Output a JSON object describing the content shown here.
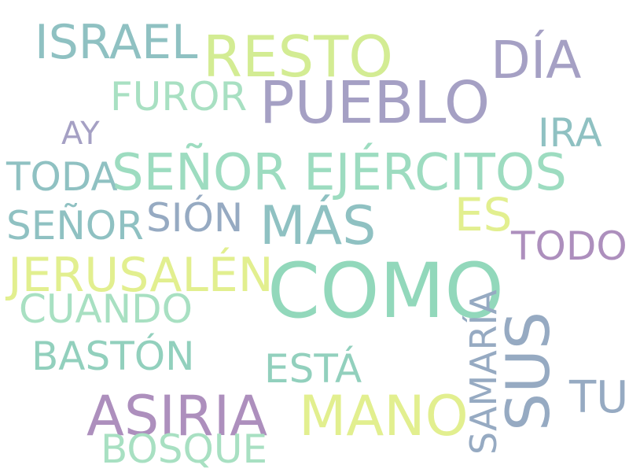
{
  "palette": {
    "teal": "#8fc1c2",
    "lime": "#d3ec93",
    "purple": "#a5a0c4",
    "mint": "#9ddcc0",
    "mauve": "#ad8fbd",
    "yellow": "#e2ef8f",
    "steel": "#96aac2"
  },
  "words": [
    {
      "id": "israel",
      "text": "ISRAEL",
      "color": "#8fc1c2"
    },
    {
      "id": "resto",
      "text": "RESTO",
      "color": "#d3ec93"
    },
    {
      "id": "dia",
      "text": "DÍA",
      "color": "#a5a0c4"
    },
    {
      "id": "furor",
      "text": "FUROR",
      "color": "#a8e0c2"
    },
    {
      "id": "pueblo",
      "text": "PUEBLO",
      "color": "#a5a0c4"
    },
    {
      "id": "ay",
      "text": "AY",
      "color": "#a5a0c4"
    },
    {
      "id": "ira",
      "text": "IRA",
      "color": "#8fc1c2"
    },
    {
      "id": "toda",
      "text": "TODA",
      "color": "#8fc1c2"
    },
    {
      "id": "senor-ejercitos",
      "text": "SEÑOR EJÉRCITOS",
      "color": "#9ddcc0"
    },
    {
      "id": "senor",
      "text": "SEÑOR",
      "color": "#8fc1c2"
    },
    {
      "id": "sion",
      "text": "SIÓN",
      "color": "#96aac2"
    },
    {
      "id": "mas",
      "text": "MÁS",
      "color": "#8fc1c2"
    },
    {
      "id": "es",
      "text": "ES",
      "color": "#e2ef8f"
    },
    {
      "id": "todo",
      "text": "TODO",
      "color": "#ad8fbd"
    },
    {
      "id": "jerusalen",
      "text": "JERUSALÉN",
      "color": "#e2ef8f"
    },
    {
      "id": "como",
      "text": "COMO",
      "color": "#92d8bb"
    },
    {
      "id": "cuando",
      "text": "CUANDO",
      "color": "#a8e0c2"
    },
    {
      "id": "samaria",
      "text": "SAMARÍA",
      "color": "#96aac2"
    },
    {
      "id": "baston",
      "text": "BASTÓN",
      "color": "#92d0bd"
    },
    {
      "id": "esta",
      "text": "ESTÁ",
      "color": "#92d0bd"
    },
    {
      "id": "sus",
      "text": "SUS",
      "color": "#96aac2"
    },
    {
      "id": "tu",
      "text": "TU",
      "color": "#96aac2"
    },
    {
      "id": "asiria",
      "text": "ASIRIA",
      "color": "#ad8fbd"
    },
    {
      "id": "mano",
      "text": "MANO",
      "color": "#e2ef8f"
    },
    {
      "id": "bosque",
      "text": "BOSQUE",
      "color": "#a8e0c2"
    }
  ]
}
